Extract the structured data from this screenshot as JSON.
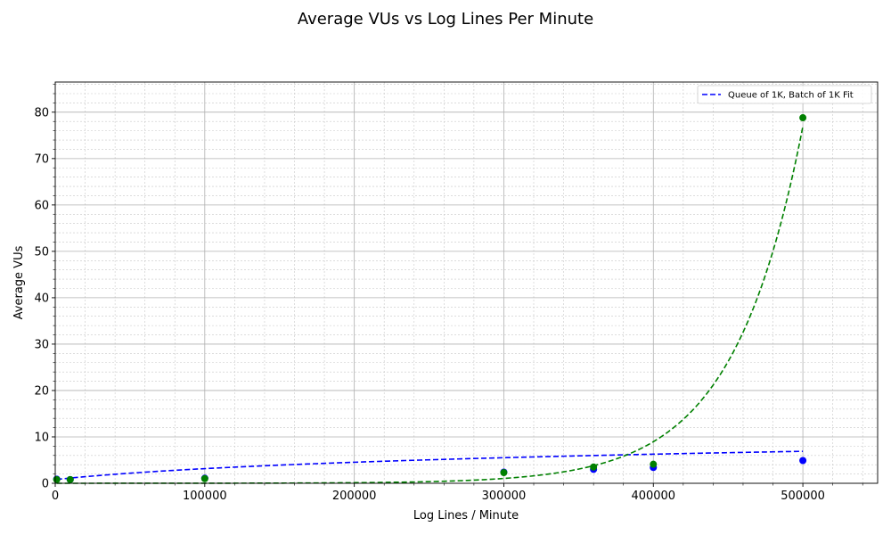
{
  "chart_data": {
    "type": "scatter",
    "title": "Average VUs vs Log Lines Per Minute",
    "xlabel": "Log Lines / Minute",
    "ylabel": "Average VUs",
    "xlim": [
      0,
      550000
    ],
    "ylim": [
      0,
      86.5
    ],
    "xticks": [
      0,
      100000,
      200000,
      300000,
      400000,
      500000
    ],
    "yticks": [
      0,
      10,
      20,
      30,
      40,
      50,
      60,
      70,
      80
    ],
    "x_minor_step": 20000,
    "y_minor_step": 2,
    "grid": true,
    "legend_position": "top-right",
    "colors": {
      "blue": "#0000ff",
      "green": "#008000"
    },
    "series": [
      {
        "color": "#0000ff",
        "points": [
          [
            1000,
            0.9
          ],
          [
            10000,
            0.8
          ],
          [
            100000,
            1.1
          ],
          [
            300000,
            2.4
          ],
          [
            360000,
            3.0
          ],
          [
            400000,
            3.4
          ],
          [
            500000,
            4.9
          ]
        ],
        "fit": {
          "kind": "log",
          "color": "#0000ff",
          "x_range": [
            1000,
            500000
          ],
          "a": 0.8,
          "b": 3.4
        }
      },
      {
        "color": "#008000",
        "points": [
          [
            1000,
            0.8
          ],
          [
            10000,
            0.8
          ],
          [
            100000,
            1.0
          ],
          [
            300000,
            2.3
          ],
          [
            360000,
            3.5
          ],
          [
            400000,
            4.1
          ],
          [
            500000,
            78.8
          ]
        ],
        "fit": {
          "kind": "exp",
          "color": "#008000",
          "x_range": [
            1000,
            500000
          ],
          "a": 0.00165,
          "k": 2.15e-05
        }
      }
    ],
    "legend": [
      {
        "label": "Queue of 1K, Batch of 1K Fit",
        "color": "#0000ff",
        "style": "dashed"
      }
    ]
  }
}
